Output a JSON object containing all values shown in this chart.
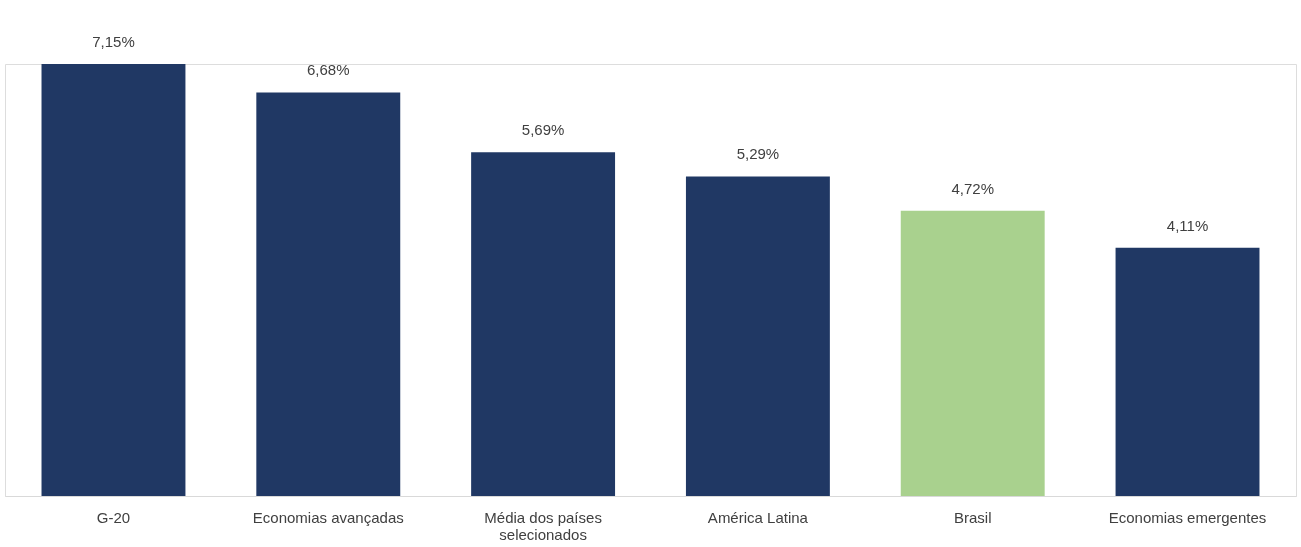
{
  "chart_data": {
    "type": "bar",
    "categories": [
      "G-20",
      "Economias avançadas",
      "Média dos países selecionados",
      "América Latina",
      "Brasil",
      "Economias emergentes"
    ],
    "values": [
      7.15,
      6.68,
      5.69,
      5.29,
      4.72,
      4.11
    ],
    "colors": [
      "#203864",
      "#203864",
      "#203864",
      "#203864",
      "#a9d18e",
      "#203864"
    ],
    "value_labels": [
      "7,15%",
      "6,68%",
      "5,69%",
      "5,29%",
      "4,72%",
      "4,11%"
    ]
  }
}
